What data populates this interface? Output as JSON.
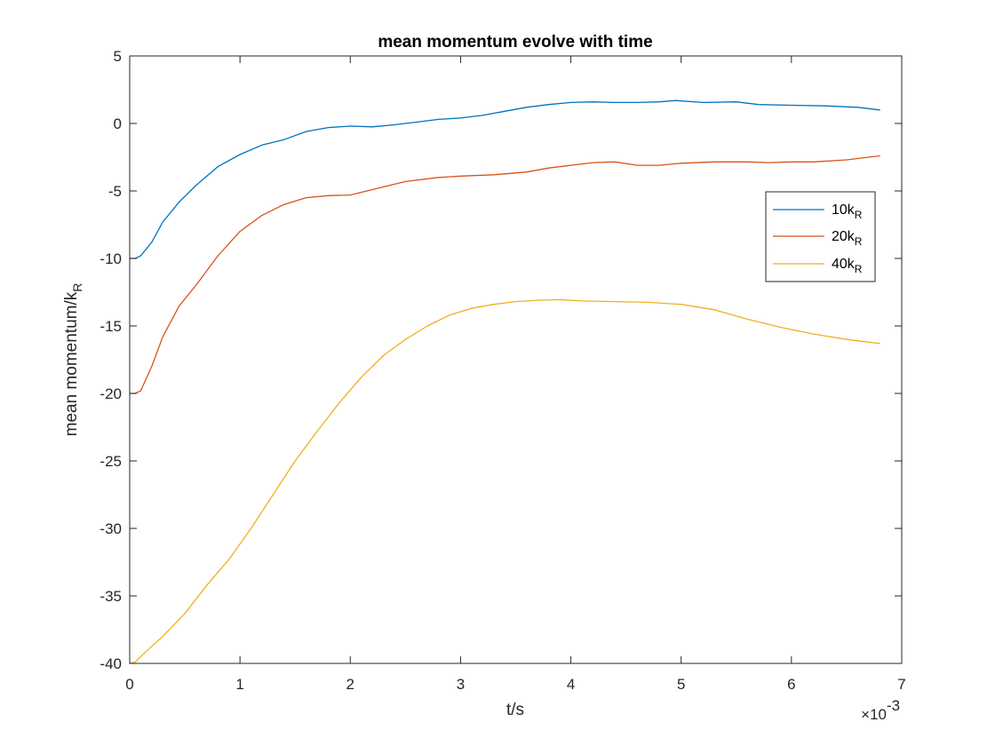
{
  "chart_data": {
    "type": "line",
    "title": "mean momentum evolve with time",
    "xlabel": "t/s",
    "ylabel_main": "mean momentum/k",
    "ylabel_sub": "R",
    "x_exponent_base": "×10",
    "x_exponent_power": "-3",
    "xlim": [
      0,
      7
    ],
    "ylim": [
      -40,
      5
    ],
    "x_ticks": [
      0,
      1,
      2,
      3,
      4,
      5,
      6,
      7
    ],
    "y_ticks": [
      5,
      0,
      -5,
      -10,
      -15,
      -20,
      -25,
      -30,
      -35,
      -40
    ],
    "grid": false,
    "legend_position": "right-center",
    "series": [
      {
        "name_main": "10k",
        "name_sub": "R",
        "color": "#0072BD",
        "points": [
          [
            0,
            -10
          ],
          [
            0.05,
            -10
          ],
          [
            0.1,
            -9.8
          ],
          [
            0.2,
            -8.8
          ],
          [
            0.3,
            -7.3
          ],
          [
            0.45,
            -5.8
          ],
          [
            0.6,
            -4.6
          ],
          [
            0.8,
            -3.2
          ],
          [
            1.0,
            -2.3
          ],
          [
            1.2,
            -1.6
          ],
          [
            1.4,
            -1.2
          ],
          [
            1.6,
            -0.6
          ],
          [
            1.8,
            -0.3
          ],
          [
            2.0,
            -0.2
          ],
          [
            2.2,
            -0.25
          ],
          [
            2.4,
            -0.1
          ],
          [
            2.6,
            0.1
          ],
          [
            2.8,
            0.3
          ],
          [
            3.0,
            0.4
          ],
          [
            3.2,
            0.6
          ],
          [
            3.4,
            0.9
          ],
          [
            3.6,
            1.2
          ],
          [
            3.8,
            1.4
          ],
          [
            4.0,
            1.55
          ],
          [
            4.2,
            1.6
          ],
          [
            4.4,
            1.55
          ],
          [
            4.6,
            1.55
          ],
          [
            4.8,
            1.6
          ],
          [
            4.95,
            1.7
          ],
          [
            5.2,
            1.55
          ],
          [
            5.5,
            1.6
          ],
          [
            5.7,
            1.4
          ],
          [
            6.0,
            1.35
          ],
          [
            6.3,
            1.3
          ],
          [
            6.6,
            1.2
          ],
          [
            6.8,
            1.0
          ]
        ]
      },
      {
        "name_main": "20k",
        "name_sub": "R",
        "color": "#D95319",
        "points": [
          [
            0,
            -20
          ],
          [
            0.05,
            -20
          ],
          [
            0.1,
            -19.8
          ],
          [
            0.2,
            -18.0
          ],
          [
            0.3,
            -15.8
          ],
          [
            0.45,
            -13.5
          ],
          [
            0.6,
            -12.0
          ],
          [
            0.8,
            -9.8
          ],
          [
            1.0,
            -8.0
          ],
          [
            1.2,
            -6.8
          ],
          [
            1.4,
            -6.0
          ],
          [
            1.6,
            -5.5
          ],
          [
            1.8,
            -5.35
          ],
          [
            2.0,
            -5.3
          ],
          [
            2.2,
            -4.9
          ],
          [
            2.5,
            -4.3
          ],
          [
            2.8,
            -4.0
          ],
          [
            3.0,
            -3.9
          ],
          [
            3.3,
            -3.8
          ],
          [
            3.6,
            -3.6
          ],
          [
            3.8,
            -3.3
          ],
          [
            4.0,
            -3.1
          ],
          [
            4.2,
            -2.9
          ],
          [
            4.4,
            -2.85
          ],
          [
            4.6,
            -3.1
          ],
          [
            4.8,
            -3.1
          ],
          [
            5.0,
            -2.95
          ],
          [
            5.3,
            -2.85
          ],
          [
            5.6,
            -2.85
          ],
          [
            5.8,
            -2.9
          ],
          [
            6.0,
            -2.85
          ],
          [
            6.2,
            -2.85
          ],
          [
            6.5,
            -2.7
          ],
          [
            6.8,
            -2.4
          ]
        ]
      },
      {
        "name_main": "40k",
        "name_sub": "R",
        "color": "#EDB120",
        "points": [
          [
            0,
            -40
          ],
          [
            0.05,
            -39.9
          ],
          [
            0.15,
            -39.1
          ],
          [
            0.3,
            -38.0
          ],
          [
            0.5,
            -36.3
          ],
          [
            0.7,
            -34.2
          ],
          [
            0.9,
            -32.3
          ],
          [
            1.1,
            -30.0
          ],
          [
            1.3,
            -27.5
          ],
          [
            1.5,
            -25.0
          ],
          [
            1.7,
            -22.8
          ],
          [
            1.9,
            -20.7
          ],
          [
            2.1,
            -18.8
          ],
          [
            2.3,
            -17.2
          ],
          [
            2.5,
            -16.0
          ],
          [
            2.7,
            -15.0
          ],
          [
            2.9,
            -14.2
          ],
          [
            3.1,
            -13.7
          ],
          [
            3.3,
            -13.4
          ],
          [
            3.5,
            -13.2
          ],
          [
            3.7,
            -13.1
          ],
          [
            3.9,
            -13.05
          ],
          [
            4.1,
            -13.15
          ],
          [
            4.4,
            -13.2
          ],
          [
            4.7,
            -13.25
          ],
          [
            5.0,
            -13.4
          ],
          [
            5.3,
            -13.8
          ],
          [
            5.6,
            -14.5
          ],
          [
            5.9,
            -15.1
          ],
          [
            6.2,
            -15.6
          ],
          [
            6.5,
            -16.0
          ],
          [
            6.8,
            -16.3
          ]
        ]
      }
    ]
  }
}
